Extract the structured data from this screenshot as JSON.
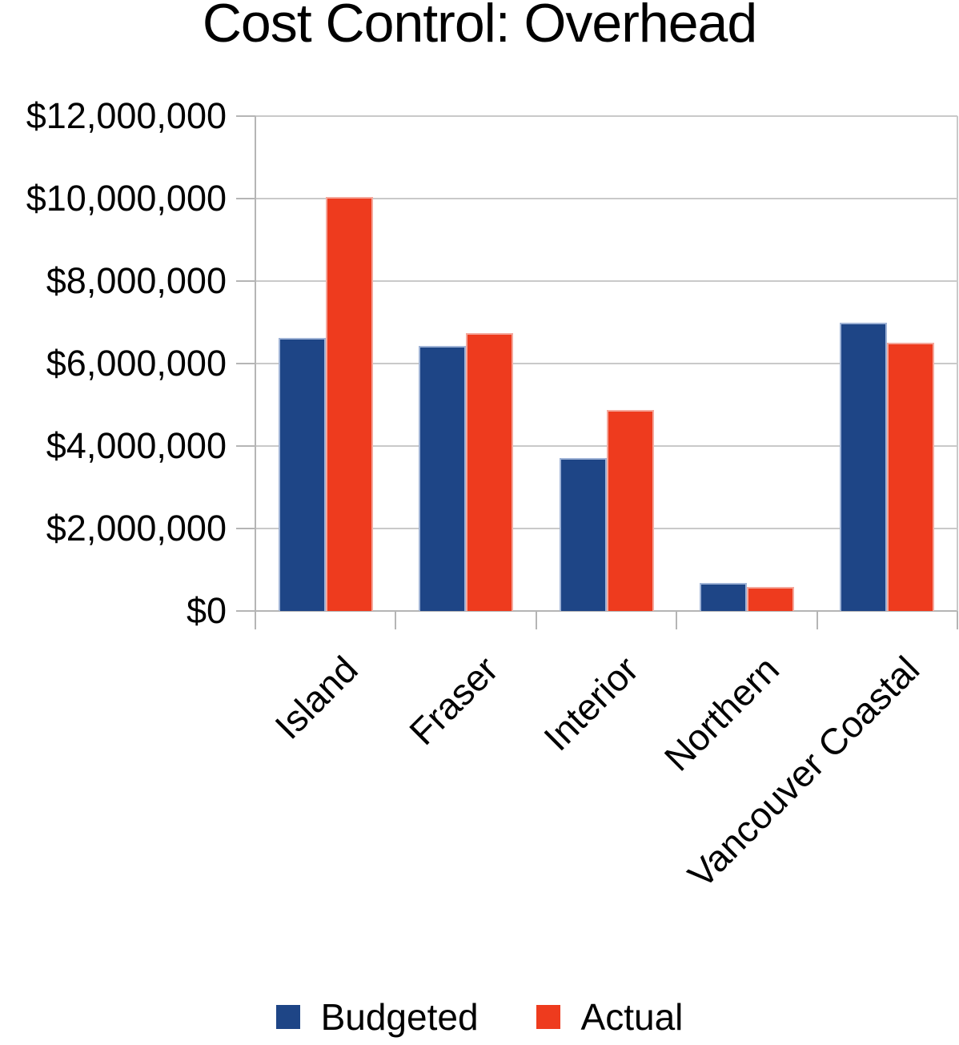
{
  "title": "Cost Control: Overhead",
  "colors": {
    "budgeted": "#1E4586",
    "budgeted_border": "#9FB3D6",
    "actual": "#EE3B1E",
    "actual_border": "#F5A79B",
    "gridline": "#C9C9C9",
    "axis": "#B5B5B5",
    "text": "#000000"
  },
  "legend": {
    "budgeted_label": "Budgeted",
    "actual_label": "Actual"
  },
  "chart_data": {
    "type": "bar",
    "title": "Cost Control: Overhead",
    "categories": [
      "Island",
      "Fraser",
      "Interior",
      "Northern",
      "Vancouver Coastal"
    ],
    "series": [
      {
        "name": "Budgeted",
        "color": "#1E4586",
        "border": "#9FB3D6",
        "values": [
          6630000,
          6430000,
          3710000,
          680000,
          7000000
        ]
      },
      {
        "name": "Actual",
        "color": "#EE3B1E",
        "border": "#F5A79B",
        "values": [
          10030000,
          6740000,
          4870000,
          580000,
          6510000
        ]
      }
    ],
    "xlabel": "",
    "ylabel": "",
    "ylim": [
      0,
      12000000
    ],
    "y_tick_step": 2000000,
    "y_tick_labels": [
      "$0",
      "$2,000,000",
      "$4,000,000",
      "$6,000,000",
      "$8,000,000",
      "$10,000,000",
      "$12,000,000"
    ],
    "grid": "horizontal",
    "legend_position": "bottom",
    "x_label_rotation_deg": 45
  }
}
